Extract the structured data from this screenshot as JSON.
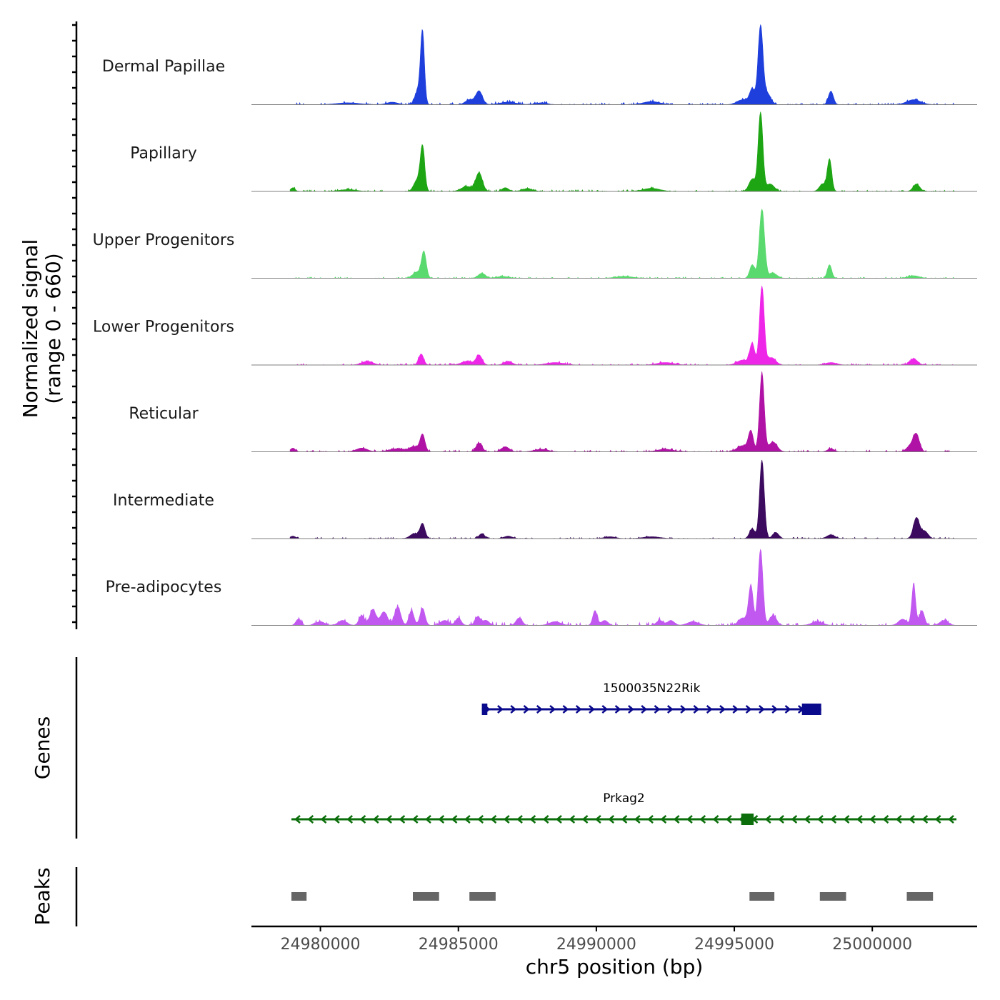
{
  "chart_data": {
    "type": "area",
    "subtype": "coverage-track",
    "ylabel_line1": "Normalized signal",
    "ylabel_line2": "(range 0 - 660)",
    "y_range": [
      0,
      660
    ],
    "xlabel": "chr5 position (bp)",
    "xlim": [
      24977500,
      25003800
    ],
    "x_ticks": [
      24980000,
      24985000,
      24990000,
      24995000,
      25000000
    ],
    "x_tick_labels": [
      "24980000",
      "24985000",
      "24990000",
      "24995000",
      "25000000"
    ],
    "signal_extent": [
      24978900,
      25003100
    ],
    "series": [
      {
        "name": "Dermal Papillae",
        "color": "#1f3fdc",
        "noise": [
          [
            24979000,
            24993000,
            5
          ],
          [
            24993000,
            25003000,
            4
          ]
        ],
        "peaks": [
          [
            24983700,
            560,
            70
          ],
          [
            24983550,
            120,
            120
          ],
          [
            24985750,
            110,
            120
          ],
          [
            24985400,
            40,
            150
          ],
          [
            24995950,
            640,
            90
          ],
          [
            24995650,
            120,
            100
          ],
          [
            24996200,
            90,
            120
          ],
          [
            24995300,
            40,
            200
          ],
          [
            24998500,
            110,
            90
          ],
          [
            25001500,
            40,
            250
          ],
          [
            24986800,
            20,
            300
          ],
          [
            24982600,
            20,
            200
          ],
          [
            24992000,
            25,
            300
          ],
          [
            24988000,
            15,
            200
          ],
          [
            24981000,
            15,
            400
          ]
        ]
      },
      {
        "name": "Papillary",
        "color": "#1ea514",
        "noise": [
          [
            24979000,
            24993000,
            4
          ],
          [
            24993000,
            25003000,
            3
          ]
        ],
        "peaks": [
          [
            24983700,
            360,
            80
          ],
          [
            24983500,
            90,
            120
          ],
          [
            24985750,
            150,
            120
          ],
          [
            24985300,
            40,
            200
          ],
          [
            24995950,
            640,
            85
          ],
          [
            24995650,
            100,
            120
          ],
          [
            24996300,
            60,
            150
          ],
          [
            24998450,
            260,
            80
          ],
          [
            24998200,
            60,
            120
          ],
          [
            25001600,
            60,
            120
          ],
          [
            24979000,
            30,
            80
          ],
          [
            24986700,
            30,
            120
          ],
          [
            24992000,
            25,
            300
          ],
          [
            24987500,
            20,
            200
          ],
          [
            24981000,
            15,
            300
          ]
        ]
      },
      {
        "name": "Upper Progenitors",
        "color": "#5ad96e",
        "noise": [
          [
            24979000,
            24993000,
            3
          ],
          [
            24993000,
            25003000,
            3
          ]
        ],
        "peaks": [
          [
            24983750,
            210,
            85
          ],
          [
            24983500,
            50,
            150
          ],
          [
            24985850,
            40,
            130
          ],
          [
            24996000,
            560,
            95
          ],
          [
            24995650,
            110,
            90
          ],
          [
            24996400,
            40,
            150
          ],
          [
            24998450,
            110,
            80
          ],
          [
            25001500,
            20,
            200
          ],
          [
            24986600,
            15,
            200
          ],
          [
            24991000,
            15,
            300
          ]
        ]
      },
      {
        "name": "Lower Progenitors",
        "color": "#ee26e8",
        "noise": [
          [
            24979000,
            24993000,
            4
          ],
          [
            24993000,
            25003000,
            4
          ]
        ],
        "peaks": [
          [
            24983650,
            90,
            90
          ],
          [
            24985750,
            80,
            110
          ],
          [
            24985300,
            30,
            200
          ],
          [
            24996000,
            640,
            85
          ],
          [
            24995650,
            170,
            90
          ],
          [
            24996350,
            60,
            150
          ],
          [
            24995300,
            40,
            200
          ],
          [
            25001500,
            50,
            140
          ],
          [
            24981700,
            30,
            200
          ],
          [
            24986800,
            30,
            150
          ],
          [
            24988500,
            20,
            300
          ],
          [
            24992500,
            20,
            300
          ],
          [
            24998500,
            20,
            200
          ]
        ]
      },
      {
        "name": "Reticular",
        "color": "#b012a5",
        "noise": [
          [
            24979000,
            24993000,
            4
          ],
          [
            24993000,
            25003000,
            4
          ]
        ],
        "peaks": [
          [
            24983700,
            140,
            90
          ],
          [
            24983400,
            40,
            150
          ],
          [
            24985750,
            70,
            110
          ],
          [
            24986700,
            40,
            150
          ],
          [
            24996000,
            640,
            85
          ],
          [
            24995600,
            160,
            90
          ],
          [
            24996400,
            80,
            150
          ],
          [
            24995300,
            50,
            200
          ],
          [
            25001600,
            130,
            110
          ],
          [
            25001400,
            50,
            150
          ],
          [
            24979000,
            30,
            90
          ],
          [
            24981500,
            30,
            200
          ],
          [
            24982800,
            25,
            300
          ],
          [
            24998500,
            25,
            120
          ],
          [
            24988000,
            20,
            250
          ],
          [
            24992500,
            20,
            300
          ]
        ]
      },
      {
        "name": "Intermediate",
        "color": "#3c0a5e",
        "noise": [
          [
            24979000,
            24993000,
            3
          ],
          [
            24993000,
            25003000,
            3
          ]
        ],
        "peaks": [
          [
            24983700,
            120,
            90
          ],
          [
            24983400,
            40,
            150
          ],
          [
            24985850,
            40,
            100
          ],
          [
            24996000,
            640,
            85
          ],
          [
            24995650,
            80,
            100
          ],
          [
            24996500,
            50,
            110
          ],
          [
            25001600,
            170,
            110
          ],
          [
            25001900,
            60,
            120
          ],
          [
            24998500,
            30,
            150
          ],
          [
            24979000,
            20,
            100
          ],
          [
            24986800,
            20,
            150
          ],
          [
            24990500,
            15,
            200
          ],
          [
            24992000,
            15,
            300
          ]
        ]
      },
      {
        "name": "Pre-adipocytes",
        "color": "#c158f0",
        "noise": [
          [
            24979000,
            24993000,
            8
          ],
          [
            24993000,
            25003000,
            6
          ]
        ],
        "peaks": [
          [
            24983700,
            140,
            90
          ],
          [
            24983300,
            120,
            90
          ],
          [
            24982800,
            150,
            110
          ],
          [
            24982300,
            110,
            130
          ],
          [
            24981900,
            130,
            110
          ],
          [
            24981500,
            80,
            100
          ],
          [
            24985000,
            60,
            100
          ],
          [
            24985700,
            70,
            100
          ],
          [
            24986000,
            40,
            120
          ],
          [
            24987200,
            60,
            110
          ],
          [
            24989950,
            120,
            80
          ],
          [
            24990300,
            40,
            120
          ],
          [
            24992300,
            40,
            120
          ],
          [
            24992700,
            40,
            120
          ],
          [
            24995950,
            620,
            85
          ],
          [
            24995600,
            320,
            85
          ],
          [
            24996400,
            80,
            130
          ],
          [
            24995300,
            60,
            150
          ],
          [
            25001500,
            330,
            70
          ],
          [
            25001800,
            120,
            90
          ],
          [
            25001100,
            50,
            150
          ],
          [
            25002600,
            40,
            150
          ],
          [
            24979200,
            50,
            90
          ],
          [
            24980000,
            30,
            150
          ],
          [
            24984500,
            40,
            150
          ],
          [
            24980800,
            40,
            150
          ],
          [
            24988500,
            30,
            200
          ],
          [
            24993500,
            30,
            200
          ],
          [
            24998000,
            30,
            200
          ]
        ]
      }
    ],
    "genes": [
      {
        "name": "1500035N22Rik",
        "strand": "+",
        "color": "#0a0a8c",
        "start": 24985850,
        "end": 24998150,
        "exons": [
          [
            24985850,
            24986050
          ],
          [
            24997450,
            24998150
          ]
        ]
      },
      {
        "name": "Prkag2",
        "strand": "-",
        "color": "#0b6e0b",
        "start": 24978950,
        "end": 25003050,
        "exons": [
          [
            24995250,
            24995700
          ]
        ]
      }
    ],
    "genes_label": "Genes",
    "peaks_label": "Peaks",
    "peaks_color": "#666666",
    "peaks": [
      [
        24978950,
        24979500
      ],
      [
        24983350,
        24984300
      ],
      [
        24985400,
        24986350
      ],
      [
        24995550,
        24996450
      ],
      [
        24998100,
        24999050
      ],
      [
        25001250,
        25002200
      ]
    ]
  }
}
